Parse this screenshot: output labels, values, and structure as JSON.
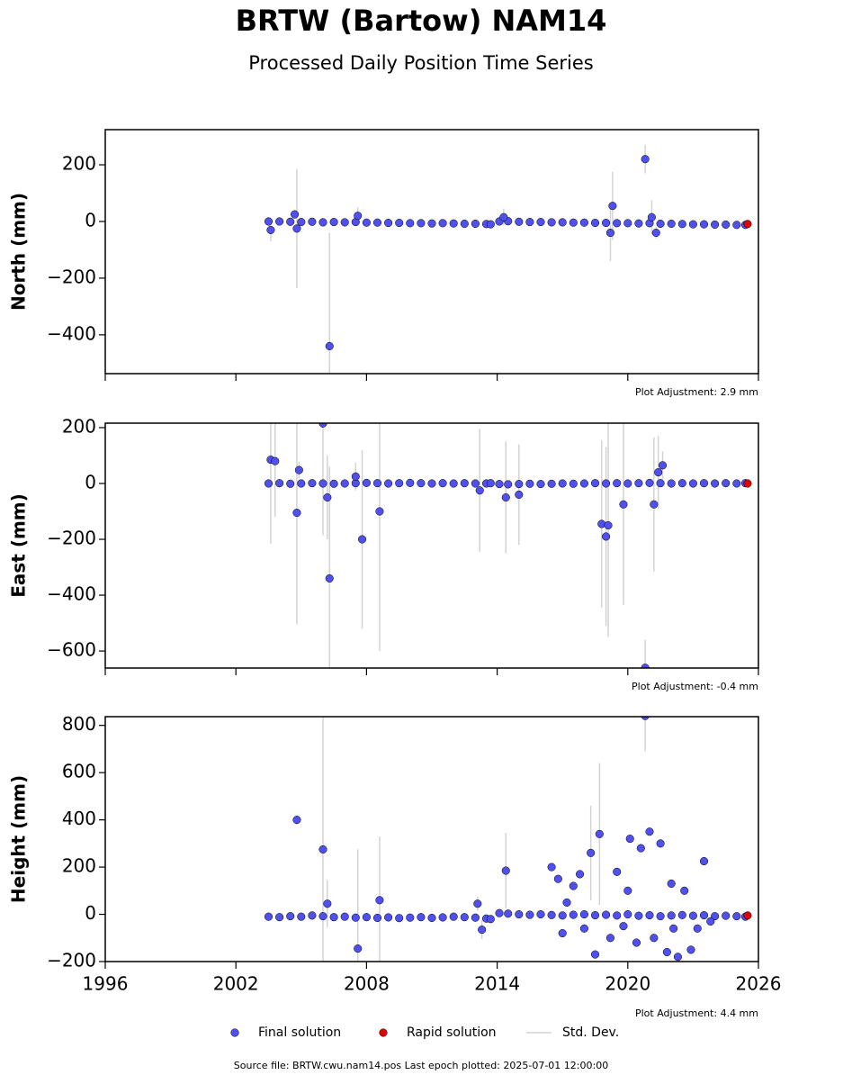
{
  "title": "BRTW (Bartow) NAM14",
  "subtitle": "Processed Daily Position Time Series",
  "footer": "Source file: BRTW.cwu.nam14.pos  Last epoch plotted: 2025-07-01 12:00:00",
  "chart_data": [
    {
      "type": "scatter",
      "ylabel": "North (mm)",
      "annotation": "Plot Adjustment: 2.9 mm",
      "xlim": [
        1996,
        2026
      ],
      "xticks": [
        1996,
        2002,
        2008,
        2014,
        2020,
        2026
      ],
      "show_xtick_labels": false,
      "ylim": [
        -537,
        324
      ],
      "yticks": [
        {
          "value": -400,
          "label": "−400"
        },
        {
          "value": -200,
          "label": "−200"
        },
        0,
        200
      ],
      "series": [
        {
          "name": "Final solution",
          "color": "#5050ee",
          "edgecolor": "#000000",
          "error_name": "Std. Dev.",
          "error_color": "#d3d3d3",
          "x": [
            2003.5,
            2004,
            2004.5,
            2005,
            2005.5,
            2006,
            2006.5,
            2007,
            2007.5,
            2008,
            2008.5,
            2009,
            2009.5,
            2010,
            2010.5,
            2011,
            2011.5,
            2012,
            2012.5,
            2013,
            2013.5,
            2013.7,
            2014.1,
            2014.5,
            2015,
            2015.5,
            2016,
            2016.5,
            2017,
            2017.5,
            2018,
            2018.5,
            2019,
            2019.5,
            2020,
            2020.5,
            2021,
            2021.5,
            2022,
            2022.5,
            2023,
            2023.5,
            2024,
            2024.5,
            2025,
            2025.4,
            2003.6,
            2004.7,
            2004.8,
            2006.3,
            2007.6,
            2014.3,
            2019.2,
            2019.3,
            2020.8,
            2021.1,
            2021.3
          ],
          "values": [
            0,
            0,
            -1,
            -2,
            -1,
            -3,
            -2,
            -3,
            -2,
            -4,
            -4,
            -5,
            -5,
            -6,
            -6,
            -7,
            -6,
            -7,
            -8,
            -8,
            -9,
            -10,
            0,
            1,
            -1,
            -2,
            -2,
            -3,
            -3,
            -4,
            -4,
            -5,
            -5,
            -6,
            -6,
            -7,
            -6,
            -8,
            -8,
            -9,
            -10,
            -10,
            -11,
            -11,
            -12,
            -12,
            -30,
            25,
            -25,
            -440,
            20,
            15,
            -40,
            55,
            220,
            15,
            -40
          ],
          "errors": [
            5,
            5,
            5,
            5,
            5,
            5,
            5,
            5,
            5,
            5,
            5,
            5,
            5,
            5,
            5,
            5,
            5,
            5,
            5,
            5,
            5,
            5,
            5,
            5,
            5,
            5,
            5,
            5,
            5,
            5,
            5,
            5,
            5,
            5,
            5,
            5,
            5,
            5,
            5,
            5,
            5,
            5,
            5,
            5,
            5,
            5,
            40,
            10,
            210,
            400,
            30,
            30,
            100,
            120,
            50,
            60,
            20
          ]
        },
        {
          "name": "Rapid solution",
          "color": "#e00000",
          "edgecolor": "#000000",
          "x": [
            2025.5
          ],
          "values": [
            -9
          ]
        }
      ]
    },
    {
      "type": "scatter",
      "ylabel": "East (mm)",
      "annotation": "Plot Adjustment: -0.4 mm",
      "xlim": [
        1996,
        2026
      ],
      "xticks": [
        1996,
        2002,
        2008,
        2014,
        2020,
        2026
      ],
      "show_xtick_labels": false,
      "ylim": [
        -661,
        216
      ],
      "yticks": [
        {
          "value": -600,
          "label": "−600"
        },
        {
          "value": -400,
          "label": "−400"
        },
        {
          "value": -200,
          "label": "−200"
        },
        0,
        200
      ],
      "series": [
        {
          "name": "Final solution",
          "color": "#5050ee",
          "edgecolor": "#000000",
          "error_name": "Std. Dev.",
          "error_color": "#d3d3d3",
          "x": [
            2003.5,
            2004,
            2004.5,
            2005,
            2005.5,
            2006,
            2006.5,
            2007,
            2007.5,
            2008,
            2008.5,
            2009,
            2009.5,
            2010,
            2010.5,
            2011,
            2011.5,
            2012,
            2012.5,
            2013,
            2013.5,
            2013.7,
            2014.1,
            2014.5,
            2015,
            2015.5,
            2016,
            2016.5,
            2017,
            2017.5,
            2018,
            2018.5,
            2019,
            2019.5,
            2020,
            2020.5,
            2021,
            2021.5,
            2022,
            2022.5,
            2023,
            2023.5,
            2024,
            2024.5,
            2025,
            2025.4,
            2003.6,
            2003.8,
            2004.8,
            2004.9,
            2006.0,
            2006.2,
            2006.3,
            2007.5,
            2007.8,
            2008.6,
            2013.2,
            2014.4,
            2015.0,
            2018.8,
            2019.0,
            2019.1,
            2019.8,
            2020.8,
            2021.2,
            2021.4,
            2021.6
          ],
          "values": [
            0,
            1,
            -1,
            0,
            1,
            0,
            -1,
            0,
            1,
            2,
            1,
            0,
            1,
            2,
            1,
            0,
            1,
            0,
            1,
            0,
            0,
            1,
            -2,
            -3,
            -2,
            -1,
            -2,
            -1,
            0,
            -1,
            0,
            1,
            0,
            1,
            0,
            1,
            2,
            1,
            0,
            1,
            0,
            1,
            0,
            1,
            0,
            1,
            85,
            80,
            -105,
            48,
            215,
            -50,
            -340,
            25,
            -200,
            -100,
            -25,
            -50,
            -40,
            -145,
            -190,
            -150,
            -75,
            -660,
            -75,
            40,
            65
          ],
          "errors": [
            5,
            5,
            5,
            5,
            5,
            5,
            5,
            5,
            5,
            5,
            5,
            5,
            5,
            5,
            5,
            5,
            5,
            5,
            5,
            5,
            5,
            5,
            5,
            5,
            5,
            5,
            5,
            5,
            5,
            5,
            5,
            5,
            5,
            5,
            5,
            5,
            5,
            5,
            5,
            5,
            5,
            5,
            5,
            5,
            5,
            5,
            300,
            200,
            400,
            30,
            400,
            150,
            400,
            50,
            320,
            500,
            220,
            200,
            180,
            300,
            320,
            400,
            360,
            100,
            240,
            130,
            50
          ]
        },
        {
          "name": "Rapid solution",
          "color": "#e00000",
          "edgecolor": "#000000",
          "x": [
            2025.5
          ],
          "values": [
            0
          ]
        }
      ]
    },
    {
      "type": "scatter",
      "ylabel": "Height (mm)",
      "annotation": "Plot Adjustment: 4.4 mm",
      "xlim": [
        1996,
        2026
      ],
      "xticks": [
        1996,
        2002,
        2008,
        2014,
        2020,
        2026
      ],
      "show_xtick_labels": true,
      "ylim": [
        -200,
        837
      ],
      "yticks": [
        {
          "value": -200,
          "label": "−200"
        },
        0,
        200,
        400,
        600,
        800
      ],
      "series": [
        {
          "name": "Final solution",
          "color": "#5050ee",
          "edgecolor": "#000000",
          "error_name": "Std. Dev.",
          "error_color": "#d3d3d3",
          "x": [
            2003.5,
            2004,
            2004.5,
            2005,
            2005.5,
            2006,
            2006.5,
            2007,
            2007.5,
            2008,
            2008.5,
            2009,
            2009.5,
            2010,
            2010.5,
            2011,
            2011.5,
            2012,
            2012.5,
            2013,
            2013.5,
            2013.7,
            2014.1,
            2014.5,
            2015,
            2015.5,
            2016,
            2016.5,
            2017,
            2017.5,
            2018,
            2018.5,
            2019,
            2019.5,
            2020,
            2020.5,
            2021,
            2021.5,
            2022,
            2022.5,
            2023,
            2023.5,
            2024,
            2024.5,
            2025,
            2025.4,
            2004.8,
            2006.0,
            2006.2,
            2007.6,
            2008.6,
            2013.1,
            2013.3,
            2014.4,
            2016.5,
            2016.8,
            2017.0,
            2017.5,
            2018.0,
            2018.3,
            2018.5,
            2018.7,
            2019.2,
            2019.5,
            2019.8,
            2020.1,
            2020.4,
            2020.6,
            2020.8,
            2021.0,
            2021.2,
            2021.5,
            2021.8,
            2022.0,
            2022.3,
            2022.6,
            2022.9,
            2023.2,
            2023.5,
            2023.8,
            2017.2,
            2017.8,
            2020.0,
            2022.1
          ],
          "values": [
            -10,
            -12,
            -8,
            -10,
            -5,
            -8,
            -12,
            -10,
            -14,
            -12,
            -15,
            -13,
            -16,
            -14,
            -12,
            -15,
            -13,
            -10,
            -12,
            -14,
            -18,
            -20,
            5,
            3,
            0,
            -2,
            0,
            -3,
            -5,
            -2,
            0,
            -4,
            -2,
            -5,
            0,
            -6,
            -4,
            -8,
            -5,
            -3,
            -6,
            -4,
            -8,
            -6,
            -8,
            -10,
            400,
            275,
            45,
            -145,
            60,
            45,
            -65,
            185,
            200,
            150,
            -80,
            120,
            -60,
            260,
            -170,
            340,
            -100,
            180,
            -50,
            320,
            -120,
            280,
            840,
            350,
            -100,
            300,
            -160,
            130,
            -180,
            100,
            -150,
            -60,
            225,
            -30,
            50,
            170,
            100,
            -60
          ],
          "errors": [
            5,
            5,
            5,
            5,
            5,
            5,
            5,
            5,
            5,
            5,
            5,
            5,
            5,
            5,
            5,
            5,
            5,
            5,
            5,
            5,
            5,
            5,
            5,
            5,
            5,
            5,
            5,
            5,
            5,
            5,
            5,
            5,
            5,
            5,
            5,
            5,
            5,
            5,
            5,
            5,
            5,
            5,
            5,
            5,
            5,
            5,
            20,
            600,
            100,
            420,
            270,
            30,
            40,
            160,
            10,
            10,
            10,
            10,
            10,
            200,
            10,
            300,
            10,
            10,
            10,
            10,
            10,
            10,
            150,
            10,
            10,
            10,
            10,
            10,
            10,
            10,
            10,
            10,
            10,
            10,
            10,
            10,
            10,
            10
          ]
        },
        {
          "name": "Rapid solution",
          "color": "#e00000",
          "edgecolor": "#000000",
          "x": [
            2025.5
          ],
          "values": [
            -5
          ]
        }
      ]
    }
  ]
}
